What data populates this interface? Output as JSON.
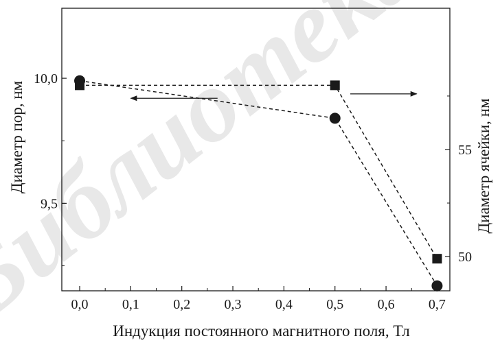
{
  "chart_data": {
    "type": "line",
    "xlabel": "Индукция постоянного магнитного поля, Тл",
    "ylabel_left": "Диаметр пор, нм",
    "ylabel_right": "Диаметр ячейки, нм",
    "x_ticks": [
      "0,0",
      "0,1",
      "0,2",
      "0,3",
      "0,4",
      "0,5",
      "0,6",
      "0,7"
    ],
    "x_tick_values": [
      0.0,
      0.1,
      0.2,
      0.3,
      0.4,
      0.5,
      0.6,
      0.7
    ],
    "y_left_ticks": [
      "10,0",
      "9,5"
    ],
    "y_left_tick_values": [
      10.0,
      9.5
    ],
    "y_right_ticks": [
      "55",
      "50"
    ],
    "y_right_tick_values": [
      55,
      50
    ],
    "xlim": [
      -0.035,
      0.725
    ],
    "ylim_left": [
      9.15,
      10.28
    ],
    "ylim_right": [
      48.4,
      61.6
    ],
    "grid": false,
    "series": [
      {
        "marker": "circle",
        "axis": "left",
        "x": [
          0.0,
          0.5,
          0.7
        ],
        "values": [
          9.99,
          9.84,
          9.17
        ]
      },
      {
        "marker": "square",
        "axis": "right",
        "x": [
          0.0,
          0.5,
          0.7
        ],
        "values": [
          58.0,
          58.0,
          49.9
        ]
      }
    ],
    "annotations": [
      {
        "kind": "arrow",
        "points_to": "left-axis",
        "series_marker": "circle"
      },
      {
        "kind": "arrow",
        "points_to": "right-axis",
        "series_marker": "square"
      }
    ]
  },
  "watermark_text": "Библиотека",
  "colors": {
    "ink": "#1a1a1a",
    "watermark": "#d6d6d6"
  }
}
